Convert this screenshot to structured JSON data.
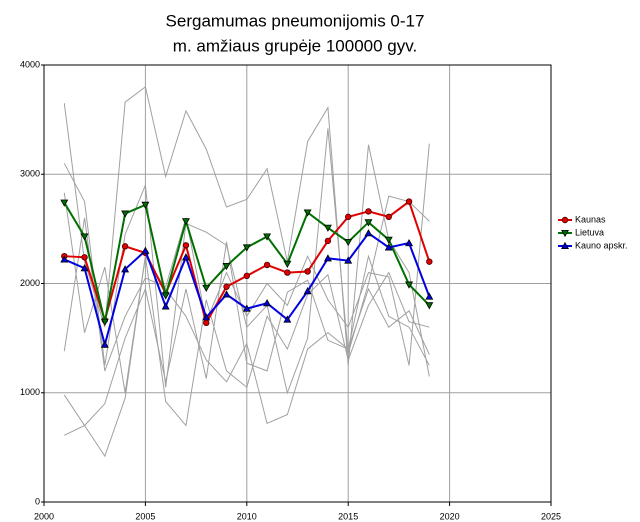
{
  "chart_data": {
    "type": "line",
    "title": [
      "Sergamumas pneumonijomis 0-17",
      "m. amžiaus grupėje 100000 gyv."
    ],
    "x": [
      2001,
      2002,
      2003,
      2004,
      2005,
      2006,
      2007,
      2008,
      2009,
      2010,
      2011,
      2012,
      2013,
      2014,
      2015,
      2016,
      2017,
      2018,
      2019
    ],
    "series": [
      {
        "name": "Kaunas",
        "color": "#e00000",
        "marker": "circle",
        "values": [
          2250,
          2240,
          1665,
          2340,
          2280,
          1910,
          2350,
          1640,
          1970,
          2070,
          2170,
          2100,
          2110,
          2390,
          2610,
          2660,
          2610,
          2750,
          2200
        ]
      },
      {
        "name": "Lietuva",
        "color": "#007000",
        "marker": "triangle-down",
        "values": [
          2740,
          2430,
          1650,
          2640,
          2720,
          1890,
          2570,
          1960,
          2160,
          2330,
          2430,
          2180,
          2650,
          2510,
          2380,
          2560,
          2400,
          1990,
          1800
        ]
      },
      {
        "name": "Kauno apskr.",
        "color": "#0000e0",
        "marker": "triangle-up",
        "values": [
          2220,
          2140,
          1440,
          2130,
          2300,
          1790,
          2240,
          1690,
          1900,
          1770,
          1820,
          1670,
          1930,
          2230,
          2210,
          2460,
          2330,
          2370,
          1880
        ]
      }
    ],
    "background_series": [
      {
        "color": "#a0a0a0",
        "values": [
          3650,
          2200,
          1600,
          3660,
          3800,
          2980,
          3580,
          3230,
          2700,
          2770,
          3050,
          2200,
          3300,
          3610,
          1250,
          3270,
          2400,
          2100,
          1150
        ]
      },
      {
        "color": "#a0a0a0",
        "values": [
          3100,
          2750,
          1250,
          2450,
          2900,
          1050,
          2550,
          2470,
          2350,
          1600,
          1800,
          1000,
          1500,
          3420,
          1360,
          2000,
          2800,
          2750,
          2570
        ]
      },
      {
        "color": "#a0a0a0",
        "values": [
          2830,
          1550,
          2150,
          1000,
          2250,
          920,
          700,
          1850,
          1200,
          1050,
          1700,
          1400,
          1900,
          2080,
          1300,
          1800,
          2100,
          1650,
          1600
        ]
      },
      {
        "color": "#a0a0a0",
        "values": [
          1380,
          2600,
          1200,
          1700,
          2050,
          1970,
          2600,
          1650,
          2100,
          1700,
          2000,
          1800,
          2250,
          1850,
          1600,
          2100,
          2060,
          1250,
          3280
        ]
      },
      {
        "color": "#a0a0a0",
        "values": [
          980,
          700,
          900,
          1500,
          1950,
          1100,
          1950,
          1130,
          2380,
          1270,
          1200,
          1920,
          2030,
          1480,
          1400,
          1950,
          1600,
          1750,
          1350
        ]
      },
      {
        "color": "#a0a0a0",
        "values": [
          610,
          700,
          420,
          950,
          2250,
          1950,
          1700,
          1300,
          1100,
          1450,
          720,
          800,
          1400,
          1550,
          1400,
          2250,
          1700,
          1600,
          1250
        ]
      }
    ],
    "xlim": [
      2000,
      2025
    ],
    "xticks": [
      2000,
      2005,
      2010,
      2015,
      2020,
      2025
    ],
    "ylim": [
      0,
      4000
    ],
    "yticks": [
      0,
      1000,
      2000,
      3000,
      4000
    ],
    "grid": true,
    "legend": "right"
  }
}
